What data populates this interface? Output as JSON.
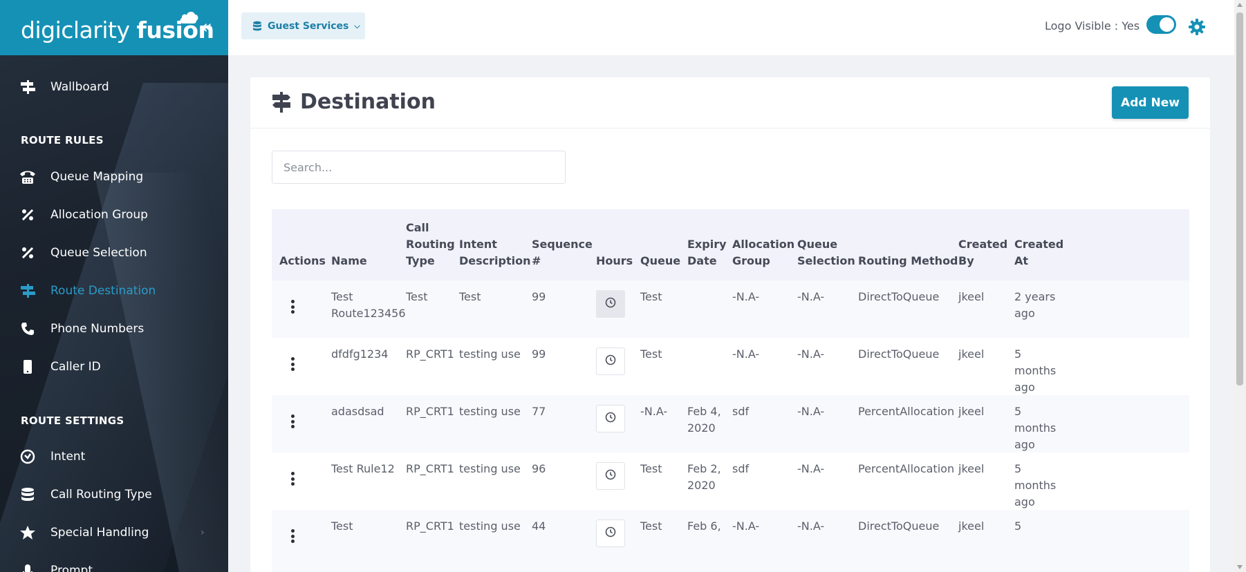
{
  "brand": {
    "word1": "digiclarity",
    "word2": "fusion"
  },
  "sidebar": {
    "top_item": {
      "label": "Wallboard"
    },
    "section1": "ROUTE RULES",
    "rules": [
      {
        "label": "Queue Mapping"
      },
      {
        "label": "Allocation Group"
      },
      {
        "label": "Queue Selection"
      },
      {
        "label": "Route Destination"
      },
      {
        "label": "Phone Numbers"
      },
      {
        "label": "Caller ID"
      }
    ],
    "section2": "ROUTE SETTINGS",
    "settings": [
      {
        "label": "Intent"
      },
      {
        "label": "Call Routing Type"
      },
      {
        "label": "Special Handling"
      },
      {
        "label": "Prompt"
      }
    ]
  },
  "topbar": {
    "service_label": "Guest Services",
    "logo_visible_label": "Logo Visible : Yes"
  },
  "page": {
    "title": "Destination",
    "add_label": "Add New",
    "search_placeholder": "Search..."
  },
  "table": {
    "headers": {
      "actions": "Actions",
      "name": "Name",
      "crt1": "Call",
      "crt2": "Routing",
      "crt3": "Type",
      "intent1": "Intent",
      "intent2": "Description",
      "seq1": "Sequence",
      "seq2": "#",
      "hours": "Hours",
      "queue": "Queue",
      "exp1": "Expiry",
      "exp2": "Date",
      "alloc1": "Allocation",
      "alloc2": "Group",
      "qsel1": "Queue",
      "qsel2": "Selection",
      "routing": "Routing Method",
      "cby1": "Created",
      "cby2": "By",
      "cat1": "Created",
      "cat2": "At"
    },
    "rows": [
      {
        "name": [
          "Test",
          "Route123456"
        ],
        "crt": "Test",
        "intent": "Test",
        "seq": "99",
        "queue": "Test",
        "expiry": [
          "",
          ""
        ],
        "alloc": "-N.A-",
        "qsel": "-N.A-",
        "routing": "DirectToQueue",
        "by": "jkeel",
        "at": [
          "2 years",
          "ago",
          ""
        ]
      },
      {
        "name": [
          "dfdfg1234",
          ""
        ],
        "crt": "RP_CRT1",
        "intent": "testing use",
        "seq": "99",
        "queue": "Test",
        "expiry": [
          "",
          ""
        ],
        "alloc": "-N.A-",
        "qsel": "-N.A-",
        "routing": "DirectToQueue",
        "by": "jkeel",
        "at": [
          "5",
          "months",
          "ago"
        ]
      },
      {
        "name": [
          "adasdsad",
          ""
        ],
        "crt": "RP_CRT1",
        "intent": "testing use",
        "seq": "77",
        "queue": "-N.A-",
        "expiry": [
          "Feb 4,",
          "2020"
        ],
        "alloc": "sdf",
        "qsel": "-N.A-",
        "routing": "PercentAllocation",
        "by": "jkeel",
        "at": [
          "5",
          "months",
          "ago"
        ]
      },
      {
        "name": [
          "Test Rule12",
          ""
        ],
        "crt": "RP_CRT1",
        "intent": "testing use",
        "seq": "96",
        "queue": "Test",
        "expiry": [
          "Feb 2,",
          "2020"
        ],
        "alloc": "sdf",
        "qsel": "-N.A-",
        "routing": "PercentAllocation",
        "by": "jkeel",
        "at": [
          "5",
          "months",
          "ago"
        ]
      },
      {
        "name": [
          "Test",
          ""
        ],
        "crt": "RP_CRT1",
        "intent": "testing use",
        "seq": "44",
        "queue": "Test",
        "expiry": [
          "Feb 6,",
          ""
        ],
        "alloc": "-N.A-",
        "qsel": "-N.A-",
        "routing": "DirectToQueue",
        "by": "jkeel",
        "at": [
          "5",
          "",
          ""
        ]
      }
    ]
  },
  "colors": {
    "accent": "#1591b6",
    "active_nav": "#2a9bc9"
  },
  "icons": {
    "collapse": "double-chevron-left-icon",
    "gear": "gear-icon",
    "service": "database-icon",
    "title": "signpost-icon",
    "hours": "clock-icon",
    "actions": "kebab-menu-icon"
  }
}
